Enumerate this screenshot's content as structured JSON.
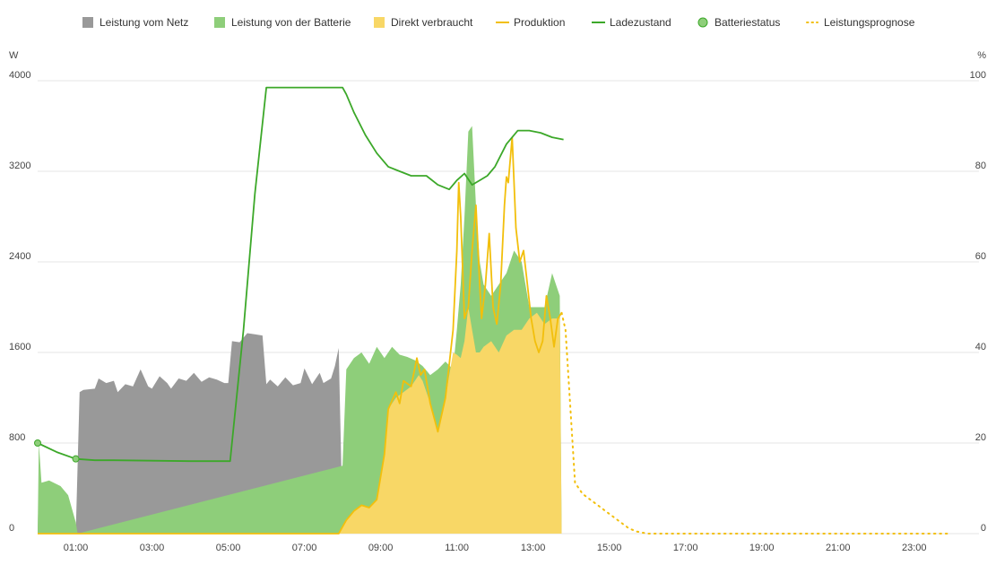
{
  "chart_data": {
    "type": "area",
    "title": "",
    "legend": {
      "placement": "top",
      "items": [
        {
          "label": "Leistung vom Netz",
          "kind": "area",
          "color": "#999999"
        },
        {
          "label": "Leistung von der Batterie",
          "kind": "area",
          "color": "#8ece7a"
        },
        {
          "label": "Direkt verbraucht",
          "kind": "area",
          "color": "#f8d766"
        },
        {
          "label": "Produktion",
          "kind": "line",
          "color": "#f2bf0c"
        },
        {
          "label": "Ladezustand",
          "kind": "line",
          "color": "#3ca829"
        },
        {
          "label": "Batteriestatus",
          "kind": "marker",
          "color": "#8ece7a"
        },
        {
          "label": "Leistungsprognose",
          "kind": "dotted",
          "color": "#f2bf0c"
        }
      ]
    },
    "y_left": {
      "unit": "W",
      "range": [
        0,
        4000
      ],
      "ticks": [
        "0",
        "800",
        "1600",
        "2400",
        "3200",
        "4000"
      ]
    },
    "y_right": {
      "unit": "%",
      "range": [
        0,
        100
      ],
      "ticks": [
        "0",
        "20",
        "40",
        "60",
        "80",
        "100"
      ]
    },
    "x_axis": {
      "range_hours": [
        0,
        24.7
      ],
      "ticks": [
        "01:00",
        "03:00",
        "05:00",
        "07:00",
        "09:00",
        "11:00",
        "13:00",
        "15:00",
        "17:00",
        "19:00",
        "21:00",
        "23:00"
      ]
    },
    "grid": true,
    "series": [
      {
        "name": "Leistung vom Netz",
        "color": "#999999",
        "x_hours": [
          0,
          0.03,
          0.05,
          1.0,
          1.1,
          1.2,
          1.5,
          1.6,
          1.8,
          2.0,
          2.1,
          2.3,
          2.5,
          2.7,
          2.9,
          3.0,
          3.2,
          3.4,
          3.5,
          3.7,
          3.9,
          4.1,
          4.3,
          4.5,
          4.7,
          4.9,
          5.0,
          5.1,
          5.3,
          5.5,
          5.7,
          5.9,
          6.0,
          6.1,
          6.3,
          6.5,
          6.7,
          6.9,
          7.0,
          7.2,
          7.4,
          7.5,
          7.7,
          7.8,
          7.9,
          8.0,
          8.05,
          8.1
        ],
        "values": [
          0,
          450,
          0,
          0,
          1250,
          1270,
          1280,
          1370,
          1330,
          1350,
          1250,
          1320,
          1300,
          1450,
          1300,
          1280,
          1390,
          1330,
          1280,
          1370,
          1350,
          1420,
          1340,
          1380,
          1360,
          1330,
          1330,
          1700,
          1690,
          1770,
          1760,
          1750,
          1320,
          1360,
          1300,
          1380,
          1310,
          1330,
          1460,
          1320,
          1420,
          1330,
          1370,
          1480,
          1640,
          100,
          40,
          0
        ]
      },
      {
        "name": "Leistung von der Batterie",
        "color": "#8ece7a",
        "x_hours": [
          0,
          0.03,
          0.1,
          0.3,
          0.6,
          0.8,
          1.0,
          1.05,
          8.0,
          8.1,
          8.3,
          8.5,
          8.7,
          8.9,
          9.1,
          9.3,
          9.5,
          9.7,
          9.9,
          10.1,
          10.3,
          10.5,
          10.7,
          10.9,
          11.0,
          11.1,
          11.2,
          11.3,
          11.4,
          11.5,
          11.6,
          11.7,
          11.9,
          12.1,
          12.3,
          12.5,
          12.7,
          12.9,
          13.1,
          13.3,
          13.5,
          13.7,
          13.75
        ],
        "values": [
          0,
          800,
          450,
          470,
          420,
          340,
          100,
          0,
          600,
          1450,
          1550,
          1600,
          1500,
          1650,
          1550,
          1650,
          1580,
          1560,
          1530,
          1480,
          1400,
          1450,
          1520,
          1450,
          1800,
          2200,
          2800,
          3550,
          3600,
          2900,
          2400,
          2200,
          2100,
          2200,
          2300,
          2500,
          2400,
          2000,
          2000,
          2000,
          2300,
          2100,
          0
        ]
      },
      {
        "name": "Direkt verbraucht",
        "color": "#f8d766",
        "x_hours": [
          0,
          7.9,
          8.1,
          8.3,
          8.5,
          8.7,
          8.9,
          9.1,
          9.2,
          9.4,
          9.6,
          9.8,
          10.0,
          10.1,
          10.3,
          10.5,
          10.7,
          10.9,
          11.0,
          11.1,
          11.2,
          11.3,
          11.4,
          11.5,
          11.6,
          11.7,
          11.9,
          12.1,
          12.3,
          12.5,
          12.7,
          12.9,
          13.1,
          13.3,
          13.5,
          13.7,
          13.75
        ],
        "values": [
          0,
          0,
          120,
          200,
          250,
          230,
          300,
          700,
          1100,
          1200,
          1250,
          1300,
          1400,
          1350,
          1150,
          900,
          1200,
          1600,
          1580,
          1550,
          1700,
          2000,
          1800,
          1600,
          1600,
          1650,
          1700,
          1600,
          1750,
          1800,
          1800,
          1900,
          1950,
          1850,
          1900,
          1900,
          0
        ]
      },
      {
        "name": "Produktion",
        "color": "#f2bf0c",
        "x_hours": [
          0,
          7.9,
          8.1,
          8.3,
          8.5,
          8.7,
          8.9,
          9.1,
          9.2,
          9.4,
          9.5,
          9.6,
          9.8,
          9.95,
          10.05,
          10.15,
          10.3,
          10.5,
          10.7,
          10.9,
          11.0,
          11.05,
          11.1,
          11.2,
          11.3,
          11.4,
          11.5,
          11.6,
          11.65,
          11.75,
          11.85,
          11.95,
          12.05,
          12.15,
          12.25,
          12.3,
          12.35,
          12.45,
          12.55,
          12.65,
          12.75,
          12.85,
          12.95,
          13.05,
          13.15,
          13.25,
          13.35,
          13.45,
          13.55,
          13.65,
          13.75
        ],
        "values": [
          0,
          0,
          120,
          200,
          250,
          230,
          300,
          700,
          1100,
          1250,
          1150,
          1350,
          1300,
          1550,
          1400,
          1450,
          1150,
          900,
          1200,
          1800,
          2500,
          3100,
          2800,
          1900,
          2000,
          2500,
          2900,
          2200,
          1900,
          2200,
          2650,
          2000,
          1850,
          2200,
          2900,
          3150,
          3100,
          3500,
          2700,
          2400,
          2500,
          2200,
          1900,
          1700,
          1600,
          1700,
          2100,
          1900,
          1650,
          1900,
          1950
        ]
      },
      {
        "name": "Ladezustand",
        "color": "#3ca829",
        "x_hours": [
          0,
          0.5,
          1.0,
          1.5,
          2.0,
          3.0,
          4.0,
          5.0,
          5.05,
          5.4,
          5.7,
          6.0,
          7.0,
          8.0,
          8.1,
          8.3,
          8.6,
          8.9,
          9.2,
          9.5,
          9.8,
          10.2,
          10.5,
          10.8,
          11.0,
          11.2,
          11.4,
          11.6,
          11.8,
          12.0,
          12.3,
          12.6,
          12.9,
          13.2,
          13.5,
          13.8
        ],
        "values": [
          20,
          18,
          16.5,
          16.2,
          16.2,
          16.1,
          16.0,
          16.0,
          16.0,
          45,
          75,
          98.5,
          98.5,
          98.5,
          97,
          93,
          88,
          84,
          81,
          80,
          79,
          79,
          77,
          76,
          78,
          79.5,
          77,
          78,
          79,
          81,
          86,
          89,
          89,
          88.5,
          87.5,
          87
        ]
      },
      {
        "name": "Batteriestatus",
        "color": "#8ece7a",
        "points": [
          {
            "x_hours": 0,
            "value": 20
          },
          {
            "x_hours": 1.0,
            "value": 16.5
          }
        ]
      },
      {
        "name": "Leistungsprognose",
        "color": "#f2bf0c",
        "x_hours": [
          13.75,
          13.85,
          14.0,
          14.1,
          14.3,
          14.5,
          14.7,
          14.9,
          15.1,
          15.3,
          15.5,
          15.7,
          16.0,
          17.0,
          18.0,
          19.0,
          20.0,
          21.0,
          22.0,
          23.0,
          23.9
        ],
        "values": [
          1950,
          1800,
          1000,
          450,
          350,
          300,
          250,
          200,
          150,
          100,
          50,
          20,
          0,
          0,
          0,
          0,
          0,
          0,
          0,
          0,
          0
        ]
      }
    ]
  }
}
